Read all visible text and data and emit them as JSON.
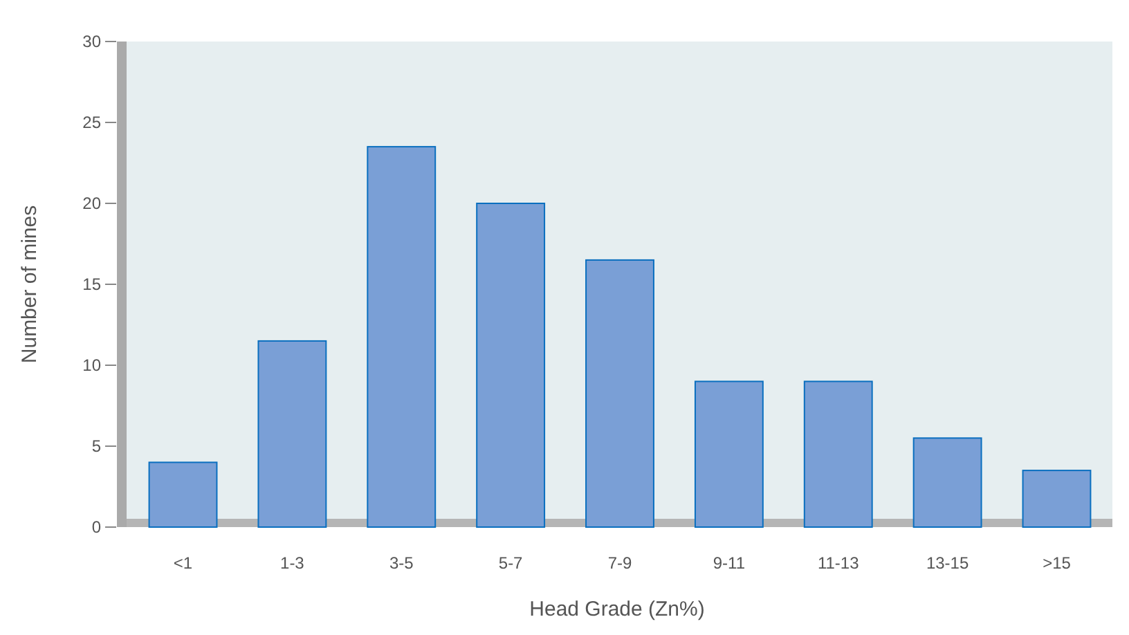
{
  "chart_data": {
    "type": "bar",
    "xlabel": "Head Grade (Zn%)",
    "ylabel": "Number of mines",
    "categories": [
      "<1",
      "1-3",
      "3-5",
      "5-7",
      "7-9",
      "9-11",
      "11-13",
      "13-15",
      ">15"
    ],
    "values": [
      4,
      11.5,
      23.5,
      20,
      16.5,
      9,
      9,
      5.5,
      3.5
    ],
    "color": "#7a9fd6",
    "ylim": [
      0,
      30
    ],
    "yticks": [
      0,
      5,
      10,
      15,
      20,
      25,
      30
    ],
    "grid": false
  }
}
